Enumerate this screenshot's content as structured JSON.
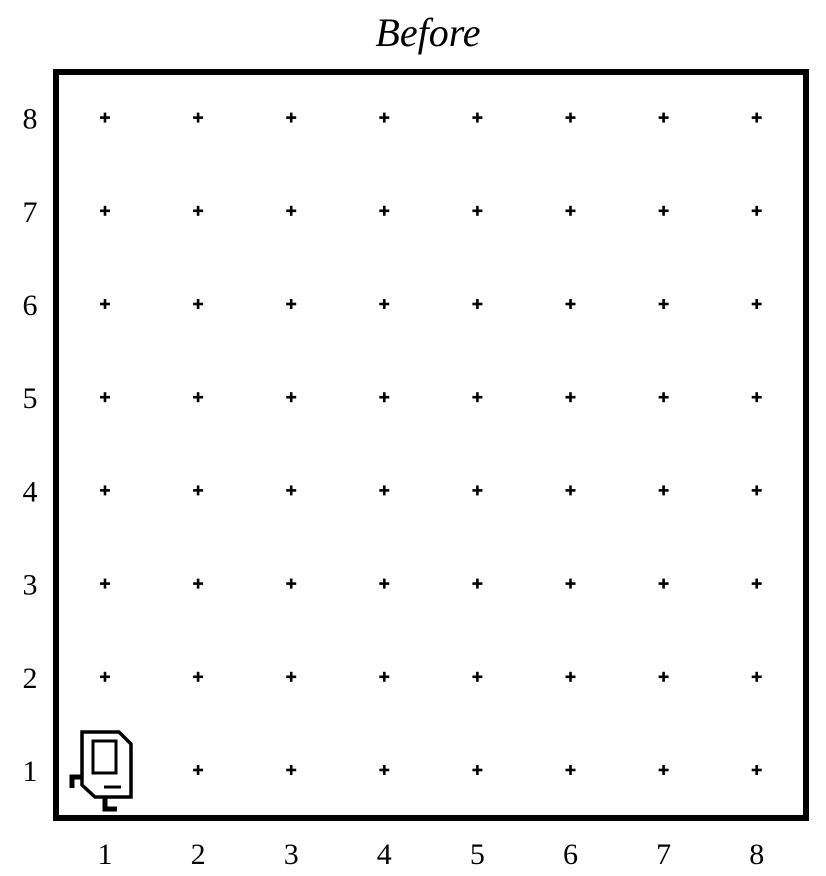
{
  "title": "Before",
  "grid": {
    "columns": 8,
    "rows": 8
  },
  "x_labels": [
    "1",
    "2",
    "3",
    "4",
    "5",
    "6",
    "7",
    "8"
  ],
  "y_labels": [
    "1",
    "2",
    "3",
    "4",
    "5",
    "6",
    "7",
    "8"
  ],
  "robot": {
    "icon": "robot-icon",
    "column": 1,
    "row": 1,
    "facing": "west"
  },
  "colors": {
    "ink": "#000000",
    "background": "#ffffff"
  }
}
